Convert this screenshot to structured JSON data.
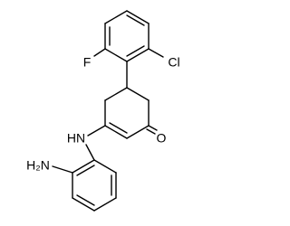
{
  "atoms": [
    {
      "label": "F"
    },
    {
      "label": "Cl"
    },
    {
      "label": "O"
    },
    {
      "label": "HN"
    },
    {
      "label": "H₂N"
    }
  ]
}
